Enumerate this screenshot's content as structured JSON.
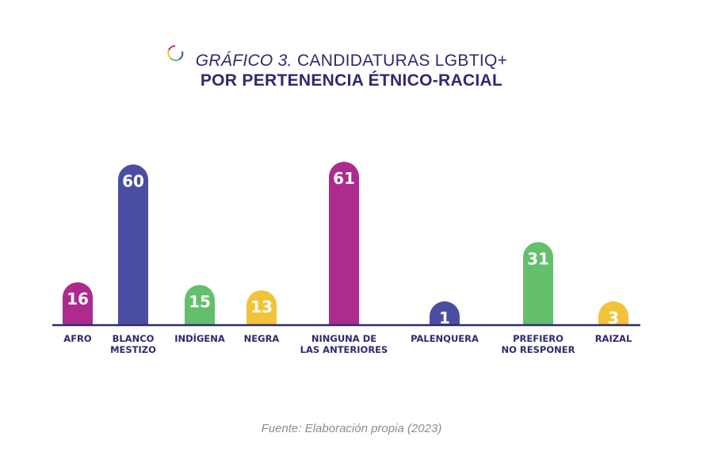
{
  "title": {
    "prefix": "GRÁFICO 3.",
    "line1": "CANDIDATURAS LGBTIQ+",
    "line2": "POR PERTENENCIA ÉTNICO-RACIAL"
  },
  "source": "Fuente: Elaboración propia (2023)",
  "colors": {
    "magenta": "#ad2a8e",
    "blue": "#4a4ea3",
    "green": "#63bf6b",
    "yellow": "#f2c33a",
    "axis": "#2e2a6e",
    "title": "#2e2a6e"
  },
  "chart_data": {
    "type": "bar",
    "title": "GRÁFICO 3. CANDIDATURAS LGBTIQ+ POR PERTENENCIA ÉTNICO-RACIAL",
    "categories": [
      [
        "AFRO"
      ],
      [
        "BLANCO",
        "MESTIZO"
      ],
      [
        "INDÍGENA"
      ],
      [
        "NEGRA"
      ],
      [
        "NINGUNA DE",
        "LAS ANTERIORES"
      ],
      [
        "PALENQUERA"
      ],
      [
        "PREFIERO",
        "NO RESPONER"
      ],
      [
        "RAIZAL"
      ]
    ],
    "values": [
      16,
      60,
      15,
      13,
      61,
      1,
      31,
      3
    ],
    "bar_colors": [
      "#ad2a8e",
      "#4a4ea3",
      "#63bf6b",
      "#f2c33a",
      "#ad2a8e",
      "#4a4ea3",
      "#63bf6b",
      "#f2c33a"
    ],
    "data_labels": true,
    "grid": false,
    "legend": "none"
  }
}
